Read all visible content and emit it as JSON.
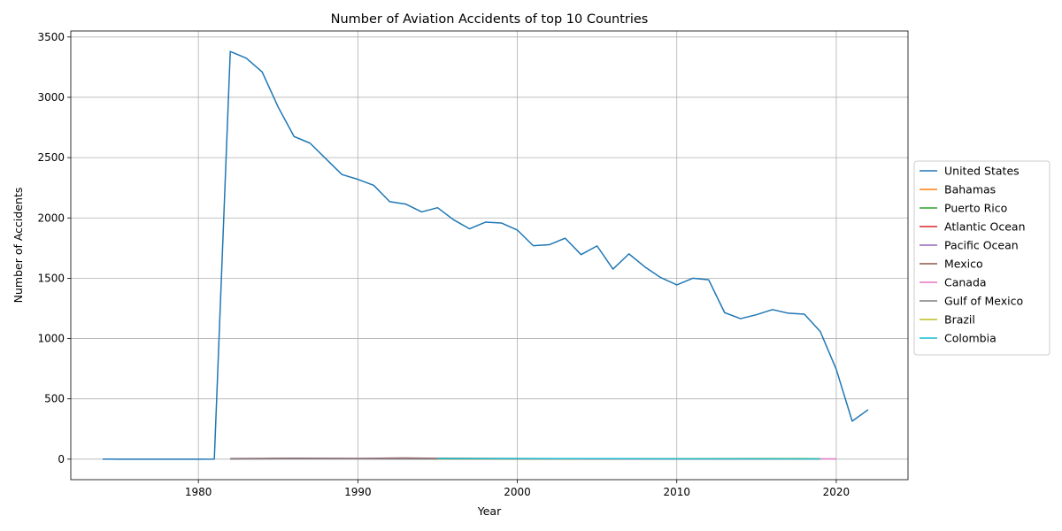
{
  "chart_data": {
    "type": "line",
    "title": "Number of Aviation Accidents of top 10 Countries",
    "xlabel": "Year",
    "ylabel": "Number of Accidents",
    "xlim": [
      1972,
      2024.5
    ],
    "ylim": [
      -170,
      3550
    ],
    "xticks": [
      1980,
      1990,
      2000,
      2010,
      2020
    ],
    "yticks": [
      0,
      500,
      1000,
      1500,
      2000,
      2500,
      3000,
      3500
    ],
    "grid": true,
    "legend_position": "center-right-outside",
    "series": [
      {
        "name": "United States",
        "color": "#1f77b4",
        "x": [
          1974,
          1975,
          1976,
          1977,
          1978,
          1979,
          1980,
          1981,
          1982,
          1983,
          1984,
          1985,
          1986,
          1987,
          1988,
          1989,
          1990,
          1991,
          1992,
          1993,
          1994,
          1995,
          1996,
          1997,
          1998,
          1999,
          2000,
          2001,
          2002,
          2003,
          2004,
          2005,
          2006,
          2007,
          2008,
          2009,
          2010,
          2011,
          2012,
          2013,
          2014,
          2015,
          2016,
          2017,
          2018,
          2019,
          2020,
          2021,
          2022
        ],
        "y": [
          1,
          0,
          0,
          0,
          0,
          0,
          0,
          1,
          3380,
          3325,
          3210,
          2920,
          2675,
          2620,
          2490,
          2360,
          2320,
          2270,
          2135,
          2115,
          2050,
          2085,
          1985,
          1910,
          1965,
          1958,
          1900,
          1770,
          1778,
          1832,
          1696,
          1768,
          1576,
          1702,
          1594,
          1505,
          1445,
          1500,
          1487,
          1215,
          1165,
          1198,
          1240,
          1210,
          1202,
          1058,
          745,
          315,
          410
        ]
      },
      {
        "name": "Bahamas",
        "color": "#ff7f0e",
        "x": [
          1982,
          1985,
          1990,
          1995,
          2000,
          2005,
          2010,
          2015,
          2019
        ],
        "y": [
          4,
          5,
          5,
          4,
          3,
          3,
          2,
          2,
          1
        ]
      },
      {
        "name": "Puerto Rico",
        "color": "#2ca02c",
        "x": [
          1982,
          1985,
          1990,
          1995,
          2000,
          2005,
          2010,
          2015,
          2019
        ],
        "y": [
          3,
          4,
          4,
          3,
          3,
          2,
          3,
          2,
          2
        ]
      },
      {
        "name": "Atlantic Ocean",
        "color": "#d62728",
        "x": [
          1982,
          1985,
          1990,
          1995,
          2000,
          2005,
          2010,
          2015,
          2019
        ],
        "y": [
          3,
          5,
          4,
          3,
          2,
          2,
          2,
          1,
          1
        ]
      },
      {
        "name": "Pacific Ocean",
        "color": "#9467bd",
        "x": [
          1982,
          1985,
          1990,
          1995,
          2000,
          2005,
          2010,
          2015,
          2019
        ],
        "y": [
          2,
          3,
          3,
          3,
          2,
          2,
          1,
          1,
          1
        ]
      },
      {
        "name": "Mexico",
        "color": "#8c564b",
        "x": [
          1982,
          1984,
          1986,
          1988,
          1990,
          1992,
          1993,
          1995,
          2000,
          2005,
          2010,
          2015,
          2019
        ],
        "y": [
          5,
          6,
          8,
          7,
          6,
          9,
          10,
          7,
          5,
          4,
          3,
          3,
          2
        ]
      },
      {
        "name": "Canada",
        "color": "#e377c2",
        "x": [
          1982,
          1985,
          1990,
          1995,
          2000,
          2005,
          2010,
          2015,
          2020
        ],
        "y": [
          3,
          4,
          5,
          4,
          3,
          4,
          3,
          3,
          2
        ]
      },
      {
        "name": "Gulf of Mexico",
        "color": "#7f7f7f",
        "x": [
          1982,
          1985,
          1990,
          1995,
          2000,
          2005,
          2010,
          2015,
          2019
        ],
        "y": [
          2,
          3,
          3,
          2,
          2,
          3,
          2,
          2,
          1
        ]
      },
      {
        "name": "Brazil",
        "color": "#bcbd22",
        "x": [
          1995,
          2000,
          2005,
          2010,
          2015,
          2018,
          2019
        ],
        "y": [
          2,
          3,
          4,
          4,
          5,
          5,
          3
        ]
      },
      {
        "name": "Colombia",
        "color": "#17becf",
        "x": [
          1995,
          2000,
          2005,
          2010,
          2015,
          2019
        ],
        "y": [
          4,
          4,
          4,
          3,
          3,
          2
        ]
      }
    ]
  }
}
